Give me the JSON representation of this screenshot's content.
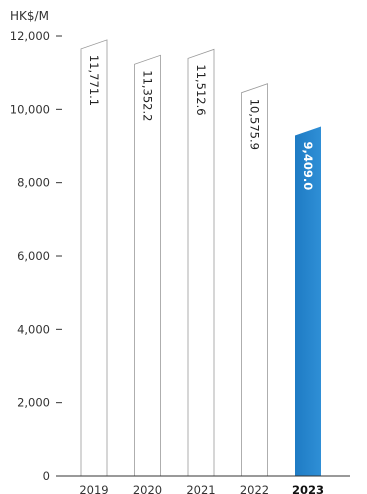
{
  "chart_data": {
    "type": "bar",
    "unit_label": "HK$/M",
    "categories": [
      "2019",
      "2020",
      "2021",
      "2022",
      "2023"
    ],
    "values": [
      11771.1,
      11352.2,
      11512.6,
      10575.9,
      9409.0
    ],
    "data_labels": [
      "11,771.1",
      "11,352.2",
      "11,512.6",
      "10,575.9",
      "9,409.0"
    ],
    "highlight_category": "2023",
    "ylim": [
      0,
      12000
    ],
    "yticks": [
      0,
      2000,
      4000,
      6000,
      8000,
      10000,
      12000
    ],
    "ytick_labels": [
      "0",
      "2,000",
      "4,000",
      "6,000",
      "8,000",
      "10,000",
      "12,000"
    ],
    "grid": false,
    "colors": {
      "highlight_bar": "#1e7bc4",
      "highlight_bar_top": "#2f8fd6",
      "outline_bar": "#9a9a9a",
      "axis": "#333333"
    }
  }
}
